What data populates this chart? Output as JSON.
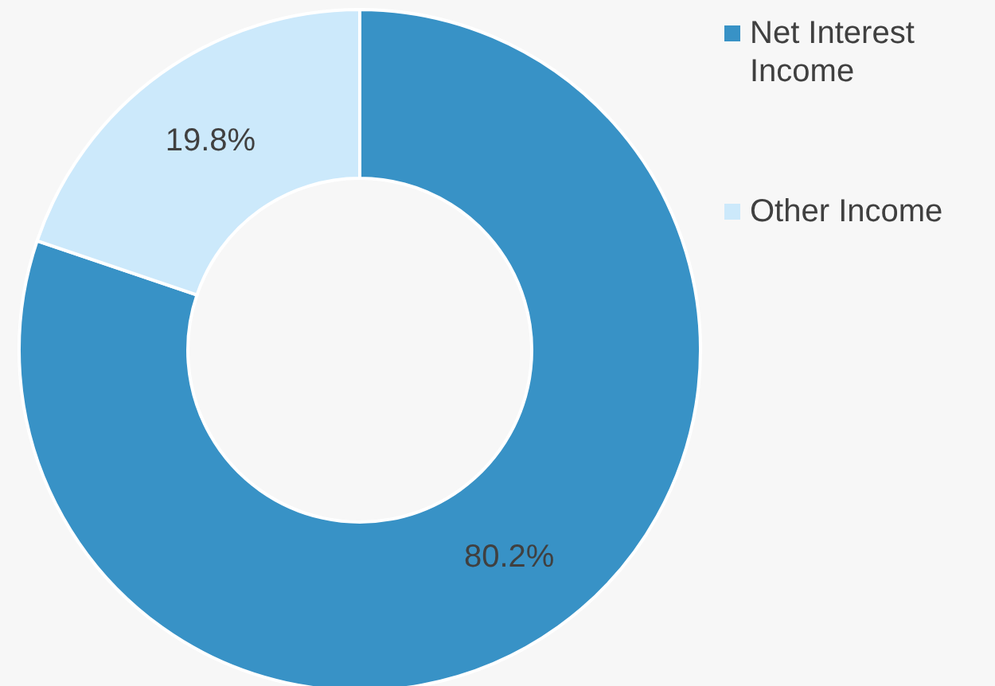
{
  "chart_data": {
    "type": "donut",
    "categories": [
      "Net Interest Income",
      "Other Income"
    ],
    "values": [
      80.2,
      19.8
    ],
    "colors": [
      "#3892c6",
      "#cce9fb"
    ],
    "value_labels": [
      "80.2%",
      "19.8%"
    ],
    "legend": "top right"
  }
}
